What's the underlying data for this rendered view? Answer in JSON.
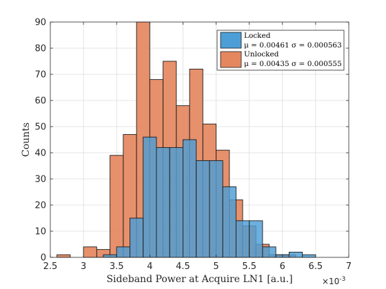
{
  "chart_data": {
    "type": "bar",
    "subtype": "overlapping-histogram",
    "xlabel": "Sideband Power at Acquire LN1 [a.u.]",
    "ylabel": "Counts",
    "x_exponent_label": "×10",
    "x_exponent_power": "-3",
    "xlim": [
      0.0025,
      0.007
    ],
    "ylim": [
      0,
      90
    ],
    "x_ticks": [
      0.0025,
      0.003,
      0.0035,
      0.004,
      0.0045,
      0.005,
      0.0055,
      0.006,
      0.0065,
      0.007
    ],
    "x_tick_labels": [
      "2.5",
      "3",
      "3.5",
      "4",
      "4.5",
      "5",
      "5.5",
      "6",
      "6.5",
      "7"
    ],
    "y_ticks": [
      0,
      10,
      20,
      30,
      40,
      50,
      60,
      70,
      80,
      90
    ],
    "y_tick_labels": [
      "0",
      "10",
      "20",
      "30",
      "40",
      "50",
      "60",
      "70",
      "80",
      "90"
    ],
    "grid": true,
    "legend_position": "top-right",
    "draw_order": [
      "Unlocked",
      "Locked"
    ],
    "series": [
      {
        "name": "Locked",
        "legend_line1": "Locked",
        "legend_line2": "μ = 0.00461  σ = 0.000563",
        "color": "#4d9ed6",
        "edge": "#1a1a1a",
        "opacity": 0.82,
        "bin_width": 0.0002,
        "bins": [
          {
            "x0": 0.0033,
            "value": 1
          },
          {
            "x0": 0.0035,
            "value": 4
          },
          {
            "x0": 0.0037,
            "value": 15
          },
          {
            "x0": 0.0039,
            "value": 46
          },
          {
            "x0": 0.0041,
            "value": 42
          },
          {
            "x0": 0.0043,
            "value": 42
          },
          {
            "x0": 0.0045,
            "value": 45
          },
          {
            "x0": 0.0047,
            "value": 37
          },
          {
            "x0": 0.0049,
            "value": 37
          },
          {
            "x0": 0.0051,
            "value": 27
          },
          {
            "x0": 0.0053,
            "value": 14
          },
          {
            "x0": 0.0055,
            "value": 14
          },
          {
            "x0": 0.0057,
            "value": 4
          },
          {
            "x0": 0.0059,
            "value": 1
          },
          {
            "x0": 0.0061,
            "value": 2
          },
          {
            "x0": 0.0063,
            "value": 1
          },
          {
            "x0": 0.0065,
            "value": 0
          },
          {
            "x0": 0.0067,
            "value": 0
          }
        ]
      },
      {
        "name": "Unlocked",
        "legend_line1": "Unlocked",
        "legend_line2": "μ = 0.00435  σ = 0.000555",
        "color": "#e4875f",
        "edge": "#1a1a1a",
        "opacity": 0.92,
        "bin_width": 0.0002,
        "bins": [
          {
            "x0": 0.0026,
            "value": 1
          },
          {
            "x0": 0.0028,
            "value": 0
          },
          {
            "x0": 0.003,
            "value": 4
          },
          {
            "x0": 0.0032,
            "value": 3
          },
          {
            "x0": 0.0034,
            "value": 39
          },
          {
            "x0": 0.0036,
            "value": 47
          },
          {
            "x0": 0.0038,
            "value": 90
          },
          {
            "x0": 0.004,
            "value": 68
          },
          {
            "x0": 0.0042,
            "value": 75
          },
          {
            "x0": 0.0044,
            "value": 58
          },
          {
            "x0": 0.0046,
            "value": 72
          },
          {
            "x0": 0.0048,
            "value": 51
          },
          {
            "x0": 0.005,
            "value": 41
          },
          {
            "x0": 0.0052,
            "value": 22
          },
          {
            "x0": 0.0054,
            "value": 12
          },
          {
            "x0": 0.0056,
            "value": 5
          },
          {
            "x0": 0.0058,
            "value": 1
          },
          {
            "x0": 0.006,
            "value": 1
          }
        ]
      }
    ]
  }
}
